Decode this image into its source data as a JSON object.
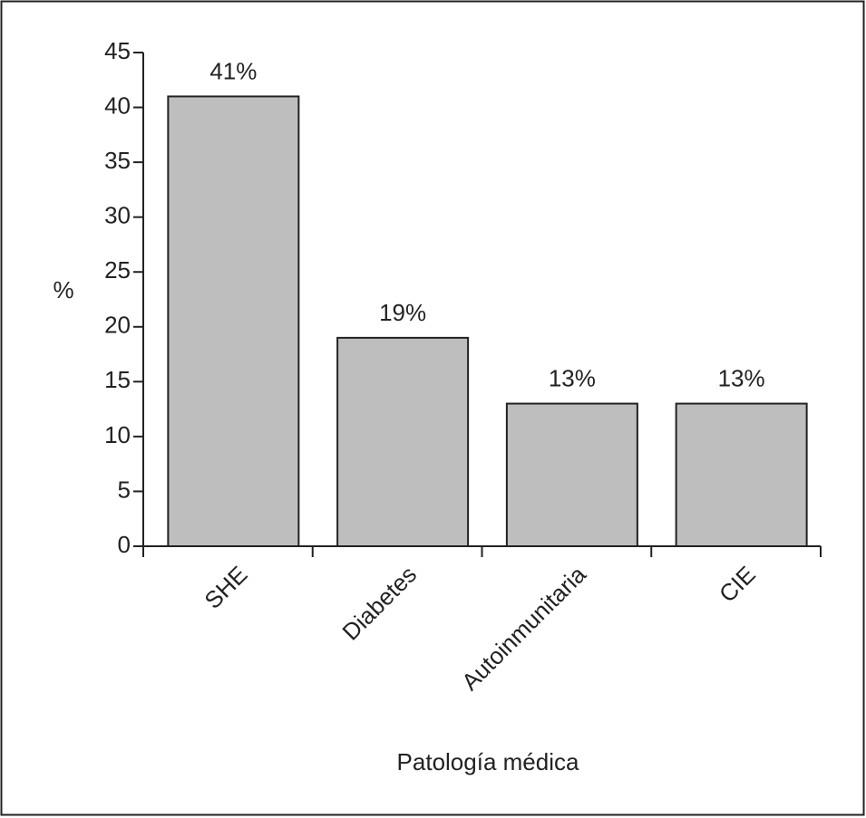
{
  "chart_data": {
    "type": "bar",
    "categories": [
      "SHE",
      "Diabetes",
      "Autoinmunitaria",
      "CIE"
    ],
    "values": [
      41,
      19,
      13,
      13
    ],
    "value_labels": [
      "41%",
      "19%",
      "13%",
      "13%"
    ],
    "color": "#bebebe",
    "ylim": [
      0,
      45
    ],
    "yticks": [
      0,
      5,
      10,
      15,
      20,
      25,
      30,
      35,
      40,
      45
    ],
    "y_label": "%",
    "x_label": "Patología médica",
    "grid": false
  }
}
